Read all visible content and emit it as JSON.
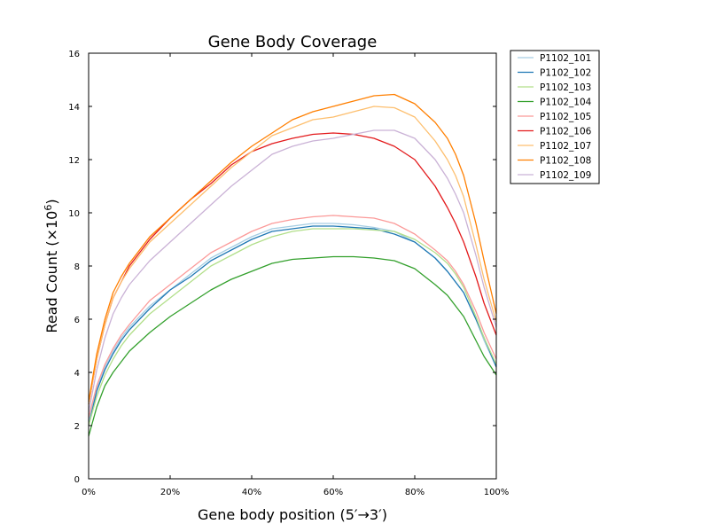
{
  "chart_data": {
    "type": "line",
    "title": "Gene Body Coverage",
    "xlabel": "Gene body position (5′→3′)",
    "ylabel": "Read Count (×10",
    "ylabel_sup": "6",
    "ylabel_close": ")",
    "xlim": [
      0,
      100
    ],
    "ylim": [
      0,
      16
    ],
    "x_ticks": [
      0,
      20,
      40,
      60,
      80,
      100
    ],
    "x_tick_labels": [
      "0%",
      "20%",
      "40%",
      "60%",
      "80%",
      "100%"
    ],
    "y_ticks": [
      0,
      2,
      4,
      6,
      8,
      10,
      12,
      14,
      16
    ],
    "y_tick_labels": [
      "0",
      "2",
      "4",
      "6",
      "8",
      "10",
      "12",
      "14",
      "16"
    ],
    "grid": false,
    "legend_position": "outside-top-right",
    "x": [
      0,
      2,
      4,
      6,
      8,
      10,
      15,
      20,
      25,
      30,
      35,
      40,
      45,
      50,
      55,
      60,
      65,
      70,
      75,
      80,
      85,
      88,
      90,
      92,
      95,
      97,
      100
    ],
    "series": [
      {
        "name": "P1102_101",
        "color": "#a6cee3",
        "values": [
          2.2,
          3.4,
          4.2,
          4.8,
          5.3,
          5.7,
          6.5,
          7.1,
          7.7,
          8.3,
          8.7,
          9.1,
          9.4,
          9.5,
          9.6,
          9.6,
          9.55,
          9.45,
          9.3,
          8.9,
          8.3,
          7.8,
          7.4,
          7.0,
          6.0,
          5.2,
          4.2
        ]
      },
      {
        "name": "P1102_102",
        "color": "#1f78b4",
        "values": [
          2.0,
          3.3,
          4.1,
          4.7,
          5.2,
          5.6,
          6.4,
          7.1,
          7.6,
          8.2,
          8.6,
          9.0,
          9.3,
          9.4,
          9.5,
          9.5,
          9.45,
          9.4,
          9.2,
          8.9,
          8.3,
          7.8,
          7.4,
          7.0,
          6.0,
          5.3,
          4.2
        ]
      },
      {
        "name": "P1102_103",
        "color": "#b2df8a",
        "values": [
          2.0,
          3.1,
          3.9,
          4.5,
          5.0,
          5.4,
          6.2,
          6.8,
          7.4,
          8.0,
          8.4,
          8.8,
          9.1,
          9.3,
          9.4,
          9.4,
          9.4,
          9.35,
          9.3,
          9.0,
          8.5,
          8.1,
          7.7,
          7.2,
          6.1,
          5.3,
          4.3
        ]
      },
      {
        "name": "P1102_104",
        "color": "#33a02c",
        "values": [
          1.6,
          2.7,
          3.5,
          4.0,
          4.4,
          4.8,
          5.5,
          6.1,
          6.6,
          7.1,
          7.5,
          7.8,
          8.1,
          8.25,
          8.3,
          8.35,
          8.35,
          8.3,
          8.2,
          7.9,
          7.3,
          6.9,
          6.5,
          6.1,
          5.2,
          4.6,
          3.9
        ]
      },
      {
        "name": "P1102_105",
        "color": "#fb9a99",
        "values": [
          2.3,
          3.5,
          4.3,
          4.9,
          5.4,
          5.8,
          6.7,
          7.3,
          7.9,
          8.5,
          8.9,
          9.3,
          9.6,
          9.75,
          9.85,
          9.9,
          9.85,
          9.8,
          9.6,
          9.2,
          8.6,
          8.2,
          7.8,
          7.3,
          6.3,
          5.5,
          4.5
        ]
      },
      {
        "name": "P1102_106",
        "color": "#e31a1c",
        "values": [
          2.8,
          4.5,
          5.8,
          6.8,
          7.4,
          8.0,
          9.0,
          9.8,
          10.5,
          11.1,
          11.8,
          12.3,
          12.6,
          12.8,
          12.95,
          13.0,
          12.95,
          12.8,
          12.5,
          12.0,
          11.0,
          10.2,
          9.6,
          8.9,
          7.6,
          6.6,
          5.4
        ]
      },
      {
        "name": "P1102_107",
        "color": "#fdbf6f",
        "values": [
          2.8,
          4.5,
          5.8,
          6.8,
          7.4,
          7.9,
          8.9,
          9.6,
          10.3,
          11.0,
          11.7,
          12.3,
          12.9,
          13.2,
          13.5,
          13.6,
          13.8,
          14.0,
          13.95,
          13.6,
          12.7,
          12.0,
          11.4,
          10.6,
          8.8,
          7.5,
          5.9
        ]
      },
      {
        "name": "P1102_108",
        "color": "#ff7f00",
        "values": [
          2.9,
          4.7,
          6.0,
          7.0,
          7.6,
          8.1,
          9.1,
          9.8,
          10.5,
          11.2,
          11.9,
          12.5,
          13.0,
          13.5,
          13.8,
          14.0,
          14.2,
          14.4,
          14.45,
          14.1,
          13.4,
          12.8,
          12.2,
          11.4,
          9.6,
          8.2,
          6.2
        ]
      },
      {
        "name": "P1102_109",
        "color": "#cab2d6",
        "values": [
          2.5,
          4.1,
          5.3,
          6.2,
          6.8,
          7.3,
          8.2,
          8.9,
          9.6,
          10.3,
          11.0,
          11.6,
          12.2,
          12.5,
          12.7,
          12.8,
          12.95,
          13.1,
          13.1,
          12.8,
          12.0,
          11.3,
          10.7,
          10.0,
          8.4,
          7.2,
          5.7
        ]
      }
    ]
  }
}
